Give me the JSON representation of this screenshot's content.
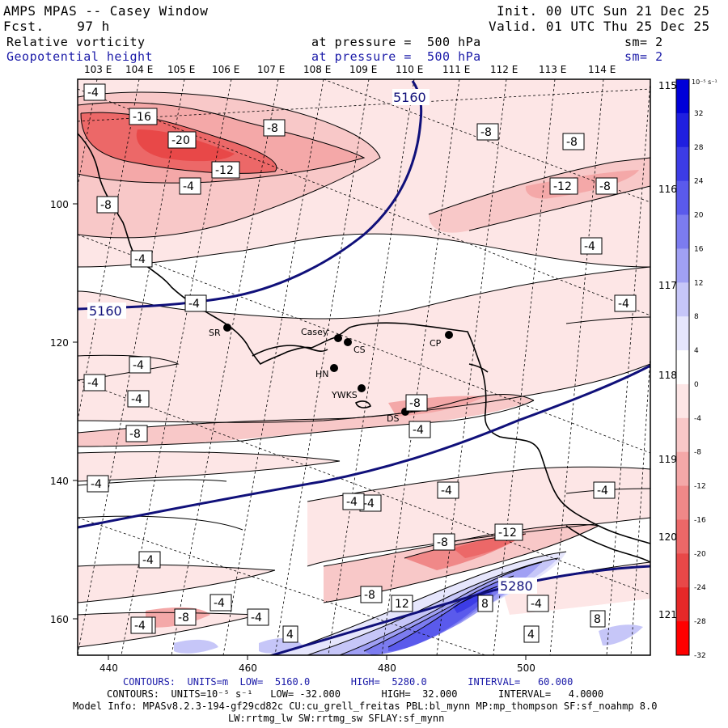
{
  "header": {
    "title": "AMPS MPAS -- Casey Window",
    "fcst": "Fcst.    97 h",
    "init": "Init. 00 UTC Sun 21 Dec 25",
    "valid": "Valid. 01 UTC Thu 25 Dec 25",
    "field1_name": "Relative vorticity",
    "field1_level": "at pressure =  500 hPa",
    "field1_sm": "sm= 2",
    "field2_name": "Geopotential height",
    "field2_level": "at pressure =  500 hPa",
    "field2_sm": "sm= 2"
  },
  "colors": {
    "blue_text": "#1a1aa8",
    "height_contour": "#10107a",
    "coast": "#000000"
  },
  "axes": {
    "top_lon_labels": [
      "103 E",
      "104 E",
      "105 E",
      "106 E",
      "107 E",
      "108 E",
      "109 E",
      "110 E",
      "111 E",
      "112 E",
      "113 E",
      "114 E"
    ],
    "right_lon_labels": [
      "115 E",
      "116 E",
      "117 E",
      "118 E",
      "119 E",
      "120 E",
      "121 E"
    ],
    "x_ticks": [
      "440",
      "460",
      "480",
      "500"
    ],
    "y_ticks": [
      "100",
      "120",
      "140",
      "160"
    ]
  },
  "colorbar": {
    "units": "10⁻⁵ s⁻¹",
    "labels": [
      "32",
      "28",
      "24",
      "20",
      "16",
      "12",
      "8",
      "4",
      "0",
      "-4",
      "-8",
      "-12",
      "-16",
      "-20",
      "-24",
      "-28",
      "-32"
    ],
    "colors": [
      "#0000d8",
      "#1f1fe0",
      "#3c3ce6",
      "#5a5aec",
      "#7c7cf0",
      "#a0a0f4",
      "#c6c6f8",
      "#e6e6fc",
      "#ffffff",
      "#fde6e6",
      "#f8c8c8",
      "#f4a8a8",
      "#f08888",
      "#ec6868",
      "#e84848",
      "#e62828",
      "#ff0000"
    ]
  },
  "stations": [
    {
      "name": "SR"
    },
    {
      "name": "Casey"
    },
    {
      "name": "CS"
    },
    {
      "name": "HN"
    },
    {
      "name": "YWKS"
    },
    {
      "name": "CP"
    },
    {
      "name": "DS"
    }
  ],
  "height_labels": [
    "5160",
    "5160",
    "5280"
  ],
  "vort_labels": [
    "-4",
    "-16",
    "-20",
    "-8",
    "-12",
    "-8",
    "-4",
    "-8",
    "-12",
    "-8",
    "-8",
    "-4",
    "-4",
    "-4",
    "-4",
    "-4",
    "-4",
    "-4",
    "-4",
    "-8",
    "-4",
    "-8",
    "-4",
    "-4",
    "-4",
    "-4",
    "-4",
    "-8",
    "-12",
    "-4",
    "-8",
    "12",
    "8",
    "-4",
    "8",
    "4",
    "4",
    "-4",
    "-8",
    "-4",
    "-4"
  ],
  "footer": {
    "line1": "CONTOURS:  UNITS=m  LOW=  5160.0       HIGH=  5280.0       INTERVAL=   60.000",
    "line2": "CONTOURS:  UNITS=10⁻⁵ s⁻¹   LOW= -32.000       HIGH=  32.000       INTERVAL=   4.0000",
    "line3": "Model Info: MPASv8.2.3-194-gf29cd82c CU:cu_grell_freitas PBL:bl_mynn MP:mp_thompson SF:sf_noahmp 8.0",
    "line4": "LW:rrtmg_lw SW:rrtmg_sw SFLAY:sf_mynn"
  }
}
